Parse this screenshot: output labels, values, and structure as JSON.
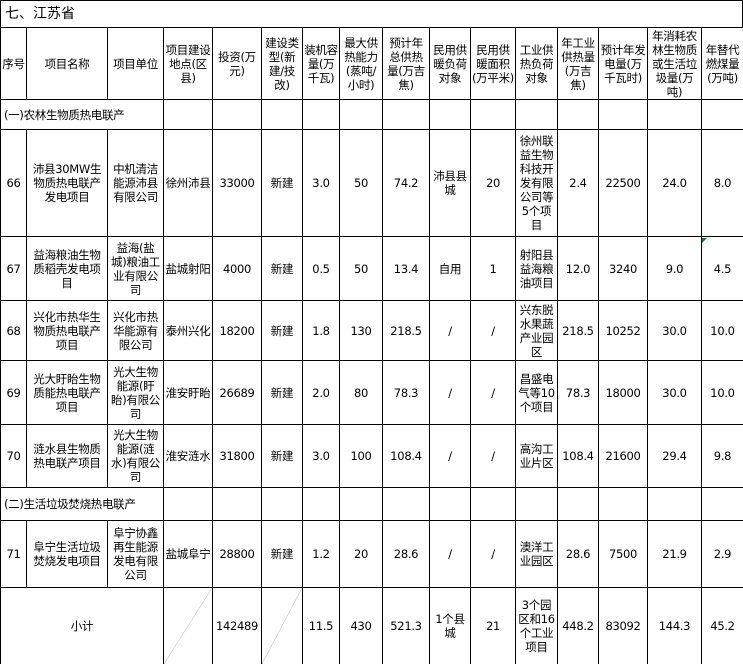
{
  "title": "七、江苏省",
  "headers": [
    "序号",
    "项目名称",
    "项目单位",
    "项目建设地点(区县)",
    "投资(万元)",
    "建设类型(新建/技改)",
    "装机容量(万千瓦)",
    "最大供热能力(蒸吨/小时)",
    "预计年总供热量(万吉焦)",
    "民用供暖负荷对象",
    "民用供暖面积(万平米)",
    "工业供热负荷对象",
    "年工业供热量(万吉焦)",
    "预计年发电量(万千瓦时)",
    "年消耗农林生物质或生活垃圾量(万吨)",
    "年替代燃煤量(万吨)"
  ],
  "sections": [
    {
      "label": "(一)农林生物质热电联产",
      "rows": [
        [
          "66",
          "沛县30MW生物质热电联产发电项目",
          "中机清洁能源沛县有限公司",
          "徐州沛县",
          "33000",
          "新建",
          "3.0",
          "50",
          "74.2",
          "沛县县城",
          "20",
          "徐州联益生物科技开发有限公司等5个项目",
          "2.4",
          "22500",
          "24.0",
          "8.0"
        ],
        [
          "67",
          "益海粮油生物质稻壳发电项目",
          "益海(盐城)粮油工业有限公司",
          "盐城射阳",
          "4000",
          "新建",
          "0.5",
          "50",
          "13.4",
          "自用",
          "1",
          "射阳县益海粮油项目",
          "12.0",
          "3240",
          "9.0",
          "4.5"
        ],
        [
          "68",
          "兴化市热华生物质热电联产项目",
          "兴化市热华能源有限公司",
          "泰州兴化",
          "18200",
          "新建",
          "1.8",
          "130",
          "218.5",
          "/",
          "/",
          "兴东脱水果蔬产业园区",
          "218.5",
          "10252",
          "30.0",
          "10.0"
        ],
        [
          "69",
          "光大盱眙生物质能热电联产项目",
          "光大生物能源(盱眙)有限公司",
          "淮安盱眙",
          "26689",
          "新建",
          "2.0",
          "80",
          "78.3",
          "/",
          "/",
          "昌盛电气等10个项目",
          "78.3",
          "18000",
          "30.0",
          "10.0"
        ],
        [
          "70",
          "涟水县生物质热电联产项目",
          "光大生物能源(涟水)有限公司",
          "淮安涟水",
          "31800",
          "新建",
          "3.0",
          "100",
          "108.4",
          "/",
          "/",
          "高沟工业片区",
          "108.4",
          "21600",
          "29.4",
          "9.8"
        ]
      ]
    },
    {
      "label": "(二)生活垃圾焚烧热电联产",
      "rows": [
        [
          "71",
          "阜宁生活垃圾焚烧发电项目",
          "阜宁协鑫再生能源发电有限公司",
          "盐城阜宁",
          "28800",
          "新建",
          "1.2",
          "20",
          "28.6",
          "/",
          "/",
          "澳洋工业园区",
          "28.6",
          "7500",
          "21.9",
          "2.9"
        ]
      ]
    }
  ],
  "subtotal": {
    "label": "小计",
    "investment": "142489",
    "capacity": "11.5",
    "max_heat": "430",
    "total_heat": "521.3",
    "civil_target": "1个县城",
    "civil_area": "21",
    "industrial_target": "3个园区和16个工业项目",
    "industrial_heat": "448.2",
    "power": "83092",
    "biomass": "144.3",
    "coal": "45.2"
  }
}
